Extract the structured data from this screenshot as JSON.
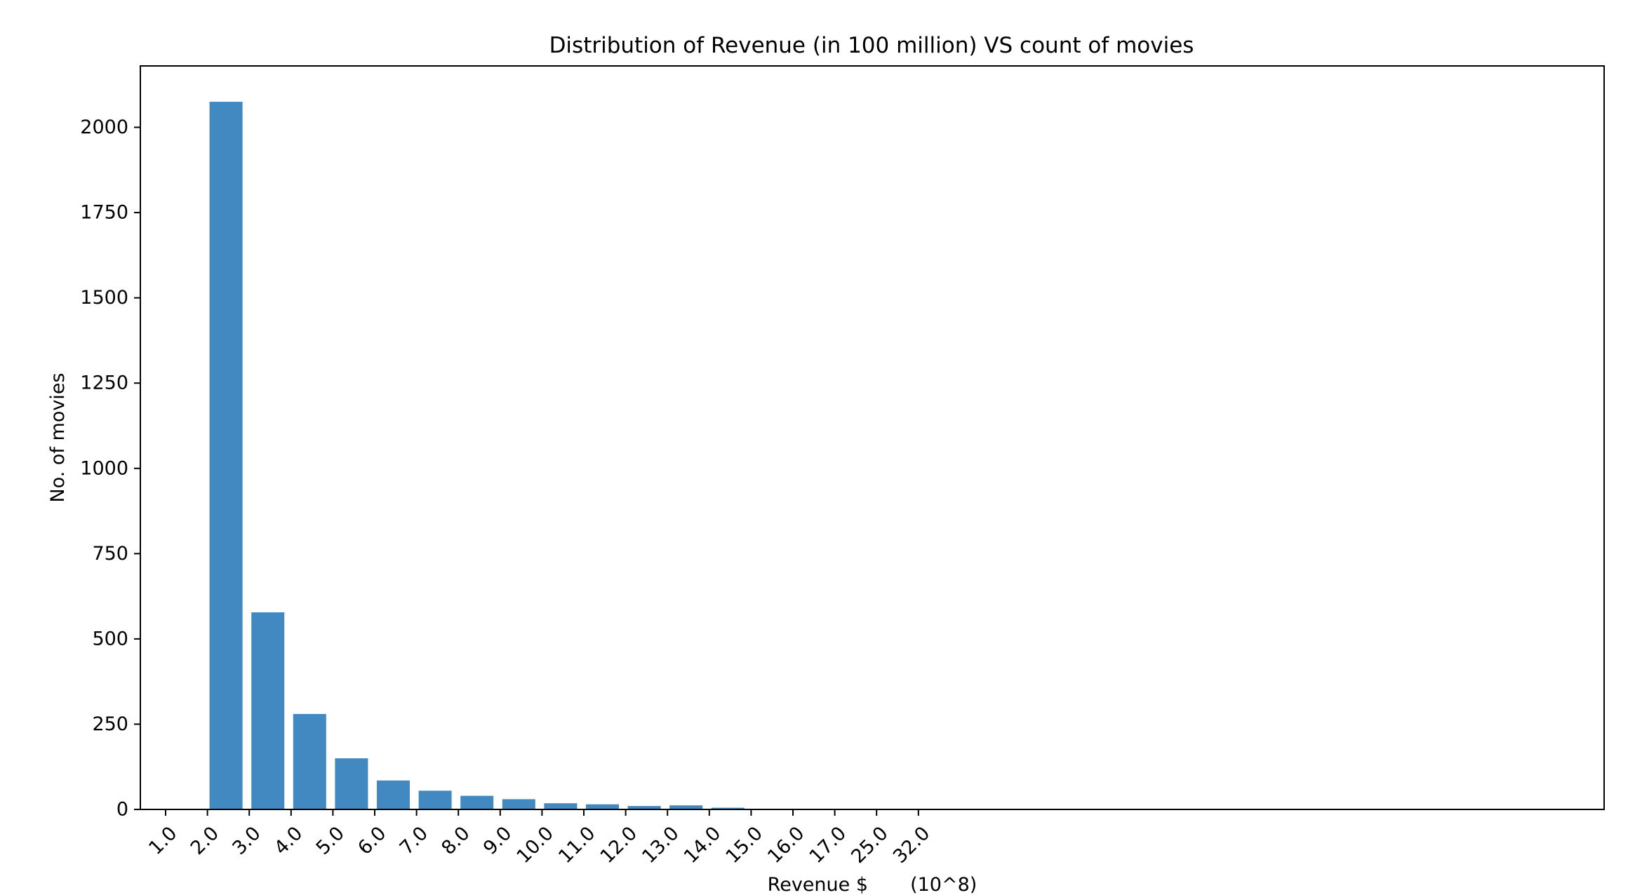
{
  "chart_data": {
    "type": "bar",
    "title": "Distribution of Revenue (in 100 million) VS count of movies",
    "xlabel": "Revenue $       (10^8)",
    "ylabel": "No. of movies",
    "categories": [
      "1.0",
      "2.0",
      "3.0",
      "4.0",
      "5.0",
      "6.0",
      "7.0",
      "8.0",
      "9.0",
      "10.0",
      "11.0",
      "12.0",
      "13.0",
      "14.0",
      "15.0",
      "16.0",
      "17.0",
      "25.0",
      "32.0"
    ],
    "values": [
      0,
      2075,
      578,
      280,
      150,
      85,
      55,
      40,
      30,
      18,
      15,
      10,
      12,
      5,
      2,
      1,
      0,
      0,
      0
    ],
    "yticks": [
      0,
      250,
      500,
      750,
      1000,
      1250,
      1500,
      1750,
      2000
    ],
    "ylim": [
      0,
      2180
    ],
    "grid": false,
    "bar_color": "#4289c1"
  }
}
